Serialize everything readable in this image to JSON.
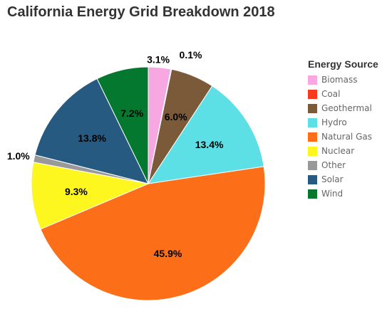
{
  "chart_data": {
    "type": "pie",
    "title": "California Energy Grid Breakdown 2018",
    "legend_title": "Energy Source",
    "legend_position": "right",
    "start_angle": "12 o'clock",
    "direction": "clockwise",
    "slices": [
      {
        "name": "Biomass",
        "value": 3.1,
        "label": "3.1%",
        "color": "#f7a8e0"
      },
      {
        "name": "Coal",
        "value": 0.1,
        "label": "0.1%",
        "color": "#fa3a1e"
      },
      {
        "name": "Geothermal",
        "value": 6.0,
        "label": "6.0%",
        "color": "#7b5a3a"
      },
      {
        "name": "Hydro",
        "value": 13.4,
        "label": "13.4%",
        "color": "#5ddfe6"
      },
      {
        "name": "Natural Gas",
        "value": 45.9,
        "label": "45.9%",
        "color": "#fd6e18"
      },
      {
        "name": "Nuclear",
        "value": 9.3,
        "label": "9.3%",
        "color": "#fdf61f"
      },
      {
        "name": "Other",
        "value": 1.0,
        "label": "1.0%",
        "color": "#999999"
      },
      {
        "name": "Solar",
        "value": 13.8,
        "label": "13.8%",
        "color": "#265a80"
      },
      {
        "name": "Wind",
        "value": 7.2,
        "label": "7.2%",
        "color": "#05782f"
      }
    ]
  }
}
